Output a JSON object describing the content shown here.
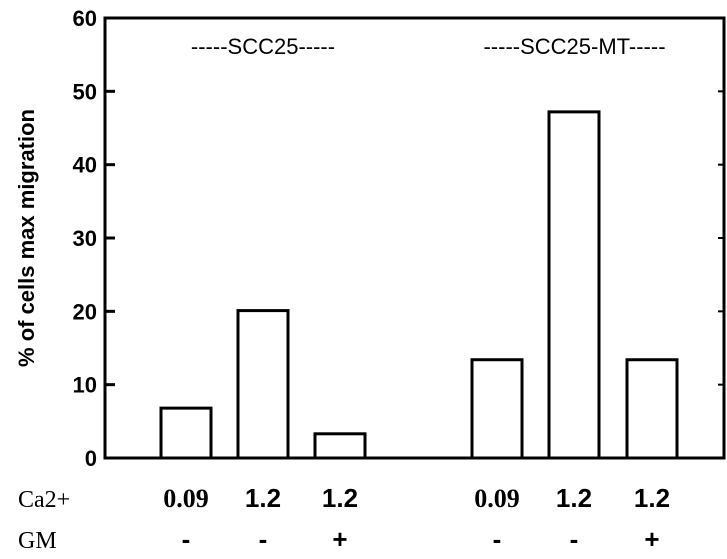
{
  "chart_data": {
    "type": "bar",
    "ylabel": "% of cells max migration",
    "ylim": [
      0,
      60
    ],
    "yticks": [
      0,
      10,
      20,
      30,
      40,
      50,
      60
    ],
    "grid": false,
    "groups": [
      {
        "label": "-----SCC25-----",
        "bar_indices": [
          0,
          1,
          2
        ]
      },
      {
        "label": "-----SCC25-MT-----",
        "bar_indices": [
          3,
          4,
          5
        ]
      }
    ],
    "row_labels": [
      "Ca2+",
      "GM"
    ],
    "bars": [
      {
        "value": 6.8,
        "ca": "0.09",
        "gm": "-"
      },
      {
        "value": 20.1,
        "ca": "1.2",
        "gm": "-"
      },
      {
        "value": 3.3,
        "ca": "1.2",
        "gm": "+"
      },
      {
        "value": 13.4,
        "ca": "0.09",
        "gm": "-"
      },
      {
        "value": 47.2,
        "ca": "1.2",
        "gm": "-"
      },
      {
        "value": 13.4,
        "ca": "1.2",
        "gm": "+"
      }
    ]
  }
}
